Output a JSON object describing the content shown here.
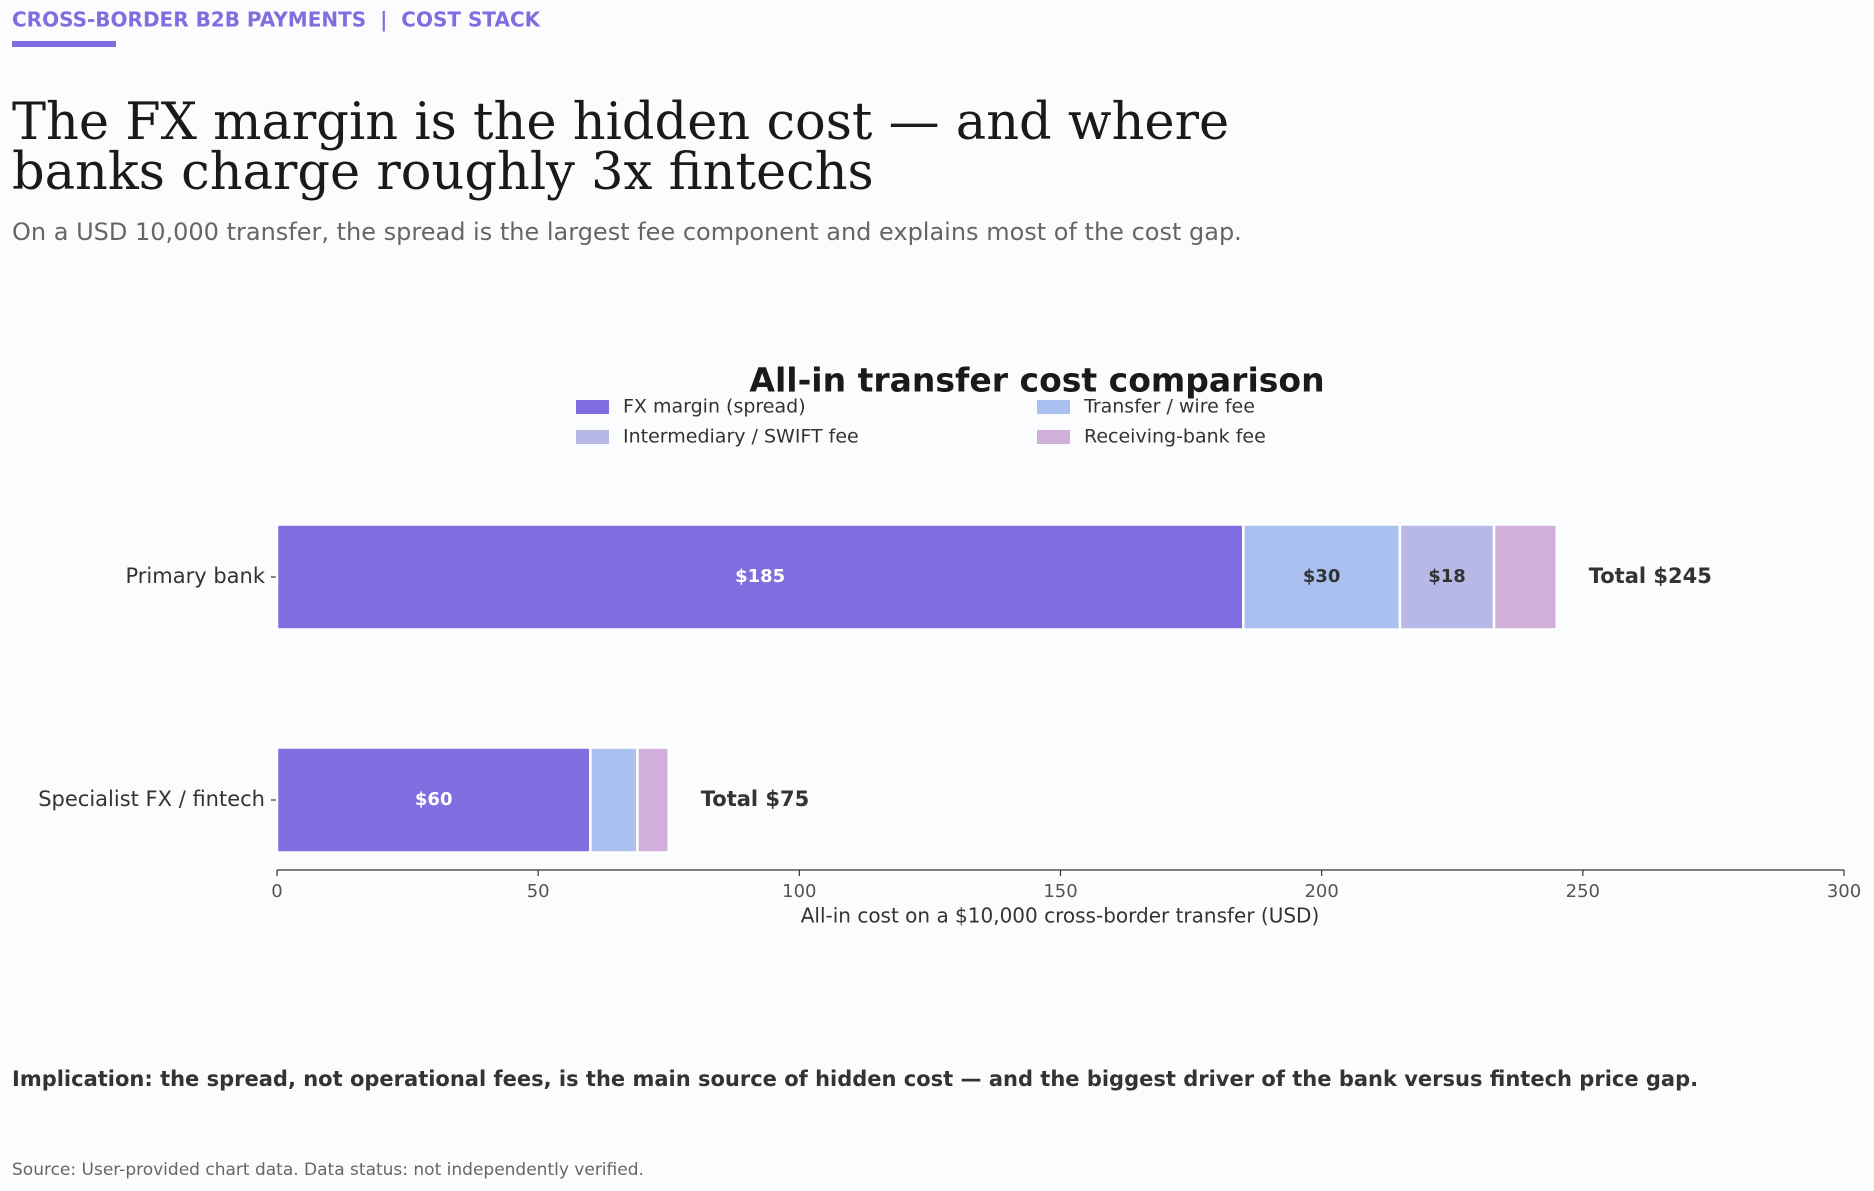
{
  "kicker": "CROSS-BORDER B2B PAYMENTS  |  COST STACK",
  "headline": [
    "The FX margin is the hidden cost — and where",
    "banks charge roughly 3x fintechs"
  ],
  "subtitle": "On a USD 10,000 transfer, the spread is the largest fee component and explains most of the cost gap.",
  "implication": "Implication: the spread, not operational fees, is the main source of hidden cost — and the biggest driver of the bank versus fintech price gap.",
  "source": "Source: User-provided chart data. Data status: not independently verified.",
  "chart_data": {
    "type": "stacked-barh",
    "title": "All-in transfer cost comparison",
    "x_label": "All-in cost on a $10,000 cross-border transfer (USD)",
    "categories": [
      "Primary bank",
      "Specialist FX / fintech"
    ],
    "series": [
      {
        "name": "FX margin (spread)",
        "color": "#806ee0",
        "values": [
          185,
          60
        ],
        "value_labels": [
          "$185",
          "$60"
        ],
        "label_color": "#ffffff"
      },
      {
        "name": "Transfer / wire fee",
        "color": "#aac0f0",
        "values": [
          30,
          9
        ],
        "value_labels": [
          "$30",
          null
        ],
        "label_color": "#333333"
      },
      {
        "name": "Intermediary / SWIFT fee",
        "color": "#b8b8e6",
        "values": [
          18,
          0
        ],
        "value_labels": [
          "$18",
          null
        ],
        "label_color": "#333333"
      },
      {
        "name": "Receiving-bank fee",
        "color": "#d0b0da",
        "values": [
          12,
          6
        ],
        "value_labels": [
          null,
          null
        ],
        "label_color": "#333333"
      }
    ],
    "totals": {
      "values": [
        245,
        75
      ],
      "value_labels": [
        "Total $245",
        "Total $75"
      ]
    },
    "xlim": [
      0,
      300
    ],
    "xticks": [
      0,
      50,
      100,
      150,
      200,
      250,
      300
    ],
    "legend": "top-center"
  }
}
